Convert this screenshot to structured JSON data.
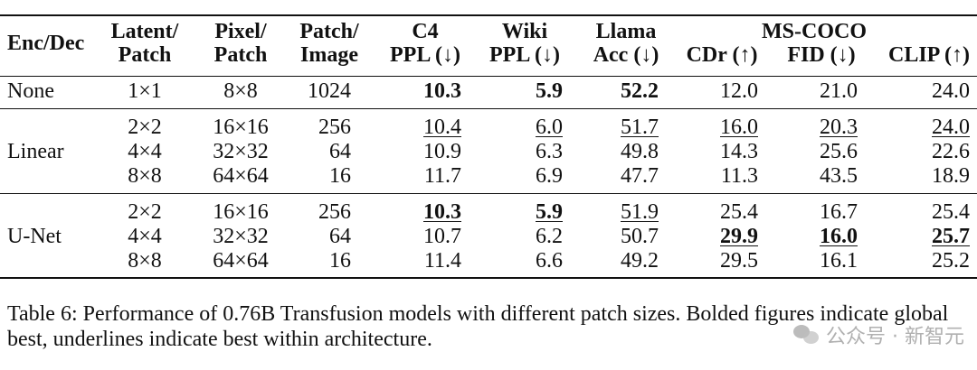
{
  "table": {
    "headers": {
      "enc_dec": "Enc/Dec",
      "latent_patch": [
        "Latent/",
        "Patch"
      ],
      "pixel_patch": [
        "Pixel/",
        "Patch"
      ],
      "patch_image": [
        "Patch/",
        "Image"
      ],
      "c4": [
        "C4",
        "PPL (↓)"
      ],
      "wiki": [
        "Wiki",
        "PPL (↓)"
      ],
      "llama": [
        "Llama",
        "Acc (↓)"
      ],
      "ms_coco": "MS-COCO",
      "cdr": "CDr (↑)",
      "fid": "FID (↓)",
      "clip": "CLIP (↑)"
    },
    "groups": [
      {
        "label": "None",
        "rows": [
          {
            "latent": "1×1",
            "pixel": "8×8",
            "patch_image": "1024",
            "c4": "10.3",
            "wiki": "5.9",
            "llama": "52.2",
            "cdr": "12.0",
            "fid": "21.0",
            "clip": "24.0"
          }
        ]
      },
      {
        "label": "Linear",
        "rows": [
          {
            "latent": "2×2",
            "pixel": "16×16",
            "patch_image": "256",
            "c4": "10.4",
            "wiki": "6.0",
            "llama": "51.7",
            "cdr": "16.0",
            "fid": "20.3",
            "clip": "24.0"
          },
          {
            "latent": "4×4",
            "pixel": "32×32",
            "patch_image": "64",
            "c4": "10.9",
            "wiki": "6.3",
            "llama": "49.8",
            "cdr": "14.3",
            "fid": "25.6",
            "clip": "22.6"
          },
          {
            "latent": "8×8",
            "pixel": "64×64",
            "patch_image": "16",
            "c4": "11.7",
            "wiki": "6.9",
            "llama": "47.7",
            "cdr": "11.3",
            "fid": "43.5",
            "clip": "18.9"
          }
        ]
      },
      {
        "label": "U-Net",
        "rows": [
          {
            "latent": "2×2",
            "pixel": "16×16",
            "patch_image": "256",
            "c4": "10.3",
            "wiki": "5.9",
            "llama": "51.9",
            "cdr": "25.4",
            "fid": "16.7",
            "clip": "25.4"
          },
          {
            "latent": "4×4",
            "pixel": "32×32",
            "patch_image": "64",
            "c4": "10.7",
            "wiki": "6.2",
            "llama": "50.7",
            "cdr": "29.9",
            "fid": "16.0",
            "clip": "25.7"
          },
          {
            "latent": "8×8",
            "pixel": "64×64",
            "patch_image": "16",
            "c4": "11.4",
            "wiki": "6.6",
            "llama": "49.2",
            "cdr": "29.5",
            "fid": "16.1",
            "clip": "25.2"
          }
        ]
      }
    ]
  },
  "caption": "Table 6: Performance of 0.76B Transfusion models with different patch sizes. Bolded figures indicate global best, underlines indicate best within architecture.",
  "watermark": "公众号 · 新智元"
}
